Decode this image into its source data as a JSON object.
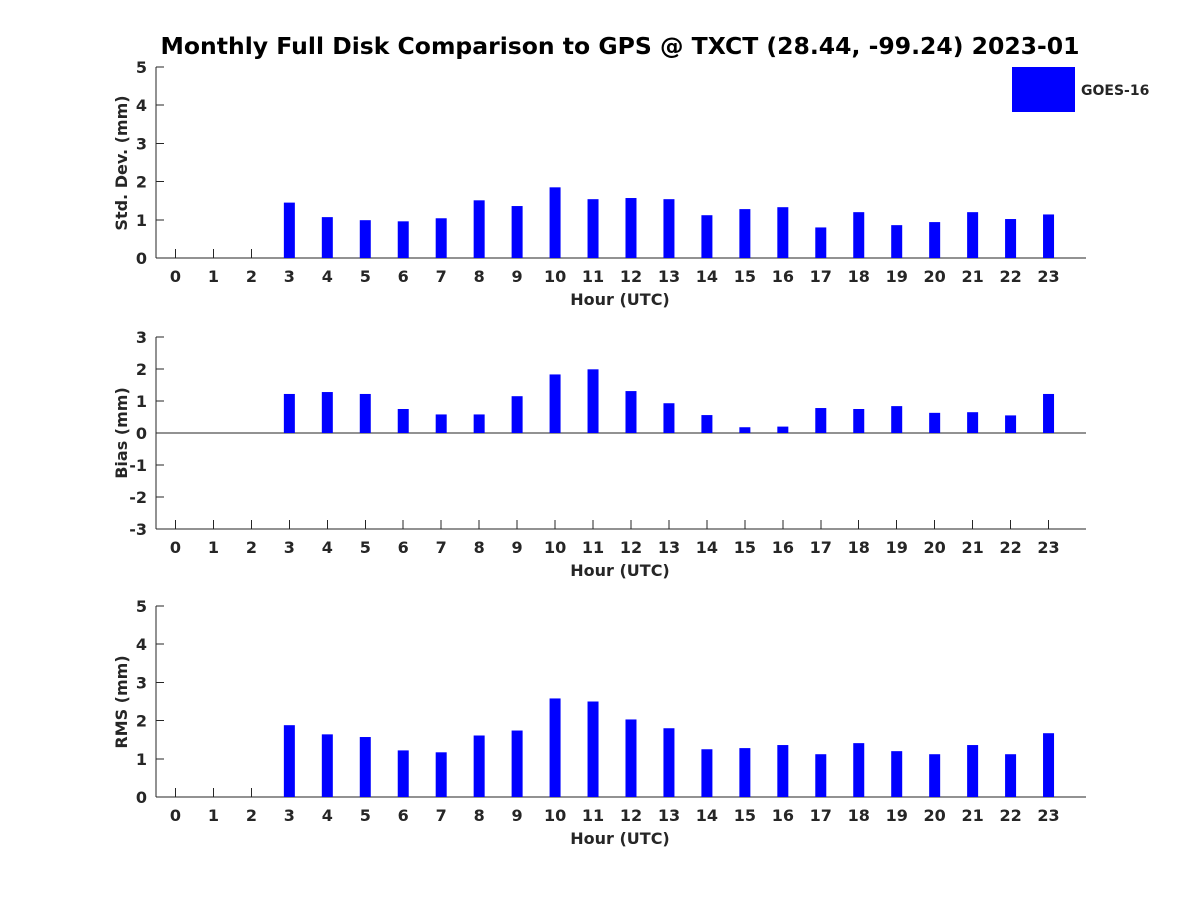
{
  "title": "Monthly Full Disk Comparison to GPS @ TXCT (28.44, -99.24) 2023-01",
  "legend": {
    "label": "GOES-16",
    "color": "#0000ff"
  },
  "bar_color": "#0000ff",
  "chart_data": [
    {
      "type": "bar",
      "xlabel": "Hour (UTC)",
      "ylabel": "Std. Dev. (mm)",
      "ylim": [
        0,
        5
      ],
      "yticks": [
        0,
        1,
        2,
        3,
        4,
        5
      ],
      "categories": [
        0,
        1,
        2,
        3,
        4,
        5,
        6,
        7,
        8,
        9,
        10,
        11,
        12,
        13,
        14,
        15,
        16,
        17,
        18,
        19,
        20,
        21,
        22,
        23
      ],
      "series": [
        {
          "name": "GOES-16",
          "values": [
            null,
            null,
            null,
            1.45,
            1.07,
            0.99,
            0.96,
            1.04,
            1.51,
            1.36,
            1.85,
            1.54,
            1.57,
            1.54,
            1.12,
            1.28,
            1.33,
            0.8,
            1.2,
            0.86,
            0.94,
            1.2,
            1.02,
            1.14
          ]
        }
      ],
      "grid": false,
      "legend_position": "top-right"
    },
    {
      "type": "bar",
      "xlabel": "Hour (UTC)",
      "ylabel": "Bias (mm)",
      "ylim": [
        -3,
        3
      ],
      "yticks": [
        -3,
        -2,
        -1,
        0,
        1,
        2,
        3
      ],
      "categories": [
        0,
        1,
        2,
        3,
        4,
        5,
        6,
        7,
        8,
        9,
        10,
        11,
        12,
        13,
        14,
        15,
        16,
        17,
        18,
        19,
        20,
        21,
        22,
        23
      ],
      "series": [
        {
          "name": "GOES-16",
          "values": [
            null,
            null,
            null,
            1.22,
            1.28,
            1.22,
            0.75,
            0.58,
            0.58,
            1.15,
            1.83,
            1.99,
            1.31,
            0.93,
            0.56,
            0.18,
            0.2,
            0.78,
            0.75,
            0.84,
            0.63,
            0.65,
            0.55,
            1.22
          ]
        }
      ],
      "grid": false
    },
    {
      "type": "bar",
      "xlabel": "Hour (UTC)",
      "ylabel": "RMS (mm)",
      "ylim": [
        0,
        5
      ],
      "yticks": [
        0,
        1,
        2,
        3,
        4,
        5
      ],
      "categories": [
        0,
        1,
        2,
        3,
        4,
        5,
        6,
        7,
        8,
        9,
        10,
        11,
        12,
        13,
        14,
        15,
        16,
        17,
        18,
        19,
        20,
        21,
        22,
        23
      ],
      "series": [
        {
          "name": "GOES-16",
          "values": [
            null,
            null,
            null,
            1.88,
            1.64,
            1.57,
            1.22,
            1.17,
            1.61,
            1.74,
            2.58,
            2.5,
            2.03,
            1.8,
            1.25,
            1.28,
            1.36,
            1.12,
            1.41,
            1.2,
            1.12,
            1.36,
            1.12,
            1.67
          ]
        }
      ],
      "grid": false
    }
  ]
}
